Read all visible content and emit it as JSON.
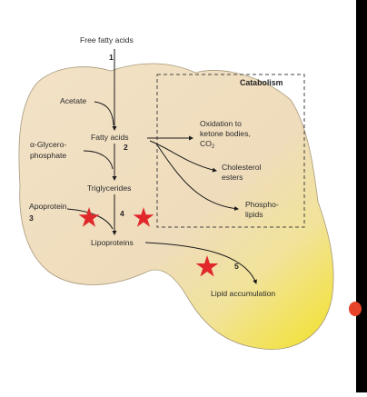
{
  "diagram": {
    "top_label": "Free fatty acids",
    "catabolism_title": "Catabolism",
    "nodes": {
      "acetate": "Acetate",
      "glycerophosphate_line1": "α-Glycero-",
      "glycerophosphate_line2": "phosphate",
      "fatty_acids": "Fatty acids",
      "triglycerides": "Triglycerides",
      "apoprotein": "Apoprotein",
      "lipoproteins": "Lipoproteins",
      "oxidation_line1": "Oxidation to",
      "oxidation_line2": "ketone bodies,",
      "oxidation_line3": "CO",
      "oxidation_sub": "2",
      "cholesterol_line1": "Cholesterol",
      "cholesterol_line2": "esters",
      "phospholipids_line1": "Phospho-",
      "phospholipids_line2": "lipids",
      "lipid_accumulation": "Lipid accumulation"
    },
    "step_numbers": [
      "1",
      "2",
      "3",
      "4",
      "5"
    ],
    "colors": {
      "cell_fill": "#f0dfc0",
      "yellow_region": "#f2e22a",
      "star": "#e0282a",
      "arrow": "#1a1a1a",
      "dashed_box": "#444444"
    }
  }
}
